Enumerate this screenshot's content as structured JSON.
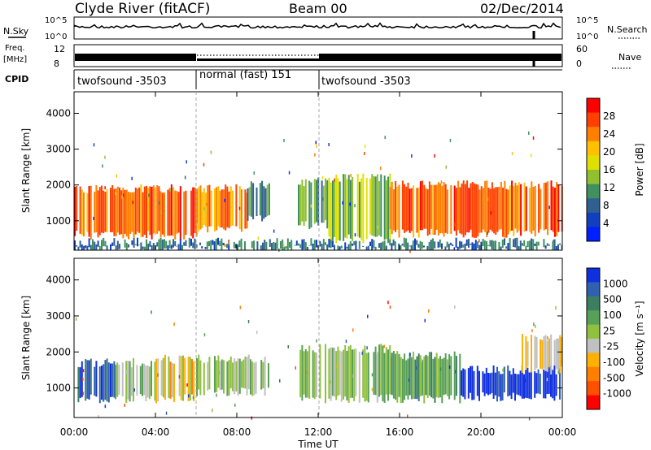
{
  "header": {
    "station": "Clyde River (fitACF)",
    "beam": "Beam 00",
    "date": "02/Dec/2014"
  },
  "panels": {
    "nsky_label": "N.Sky",
    "nsearch_label": "N.Search",
    "freq_label": "Freq.",
    "freq_unit": "[MHz]",
    "nave_label": "Nave",
    "cpid_label": "CPID",
    "count_ticks": [
      "10^5",
      "10^0"
    ],
    "freq_ticks": [
      "12",
      "8"
    ],
    "nave_ticks": [
      "60",
      "0"
    ]
  },
  "cpid_segments": [
    {
      "label": "twofsound -3503",
      "start": 0,
      "end": 6
    },
    {
      "label": "normal (fast) 151",
      "start": 6,
      "end": 12
    },
    {
      "label": "twofsound -3503",
      "start": 12,
      "end": 24
    }
  ],
  "xaxis": {
    "label": "Time UT",
    "ticks": [
      "00:00",
      "04:00",
      "08:00",
      "12:00",
      "16:00",
      "20:00",
      "00:00"
    ],
    "range": [
      0,
      24
    ]
  },
  "power_colorbar": {
    "label": "Power [dB]",
    "ticks": [
      "28",
      "24",
      "20",
      "16",
      "12",
      "8",
      "4"
    ],
    "colors": [
      "#ff0000",
      "#ff4000",
      "#ff8000",
      "#ffc000",
      "#e0e000",
      "#90c030",
      "#409060",
      "#306090",
      "#1040c0",
      "#0020ff"
    ]
  },
  "velocity_colorbar": {
    "label": "Velocity [m s⁻¹]",
    "ticks": [
      "1000",
      "500",
      "100",
      "25",
      "-25",
      "-100",
      "-500",
      "-1000"
    ],
    "colors": [
      "#1030e0",
      "#3060b0",
      "#3a8060",
      "#58a058",
      "#90c040",
      "#c0c0c0",
      "#ffb000",
      "#ff8000",
      "#ff5000",
      "#ff0000"
    ]
  },
  "chart_data": [
    {
      "type": "heatmap",
      "title": "",
      "xlabel": "Time UT",
      "ylabel": "Slant Range [km]",
      "xlim": [
        0,
        24
      ],
      "ylim": [
        180,
        4600
      ],
      "yticks": [
        "1000",
        "2000",
        "3000",
        "4000"
      ],
      "colorbar": "Power [dB]",
      "clim": [
        0,
        30
      ],
      "echo_bands": [
        {
          "t0": 0.0,
          "t1": 6.0,
          "r0": 600,
          "r1": 1900,
          "value": 24
        },
        {
          "t0": 6.0,
          "t1": 8.5,
          "r0": 800,
          "r1": 1900,
          "value": 22
        },
        {
          "t0": 8.5,
          "t1": 9.6,
          "r0": 1100,
          "r1": 2000,
          "value": 10
        },
        {
          "t0": 11.0,
          "t1": 12.5,
          "r0": 900,
          "r1": 2100,
          "value": 12
        },
        {
          "t0": 12.5,
          "t1": 15.5,
          "r0": 500,
          "r1": 2200,
          "value": 14
        },
        {
          "t0": 15.5,
          "t1": 24.0,
          "r0": 650,
          "r1": 2000,
          "value": 24
        },
        {
          "t0": 0.0,
          "t1": 24.0,
          "r0": 200,
          "r1": 400,
          "value": 8
        }
      ]
    },
    {
      "type": "heatmap",
      "title": "",
      "xlabel": "Time UT",
      "ylabel": "Slant Range [km]",
      "xlim": [
        0,
        24
      ],
      "ylim": [
        180,
        4600
      ],
      "yticks": [
        "1000",
        "2000",
        "3000",
        "4000"
      ],
      "colorbar": "Velocity [m s⁻¹]",
      "clim": [
        -1000,
        1000
      ],
      "echo_bands": [
        {
          "t0": 0.0,
          "t1": 2.0,
          "r0": 700,
          "r1": 1700,
          "value": 800
        },
        {
          "t0": 2.0,
          "t1": 4.0,
          "r0": 700,
          "r1": 1700,
          "value": 100
        },
        {
          "t0": 4.0,
          "t1": 6.0,
          "r0": 700,
          "r1": 1800,
          "value": -200
        },
        {
          "t0": 6.0,
          "t1": 9.6,
          "r0": 900,
          "r1": 1800,
          "value": 50
        },
        {
          "t0": 11.0,
          "t1": 15.5,
          "r0": 700,
          "r1": 2100,
          "value": 150
        },
        {
          "t0": 15.5,
          "t1": 19.0,
          "r0": 700,
          "r1": 1900,
          "value": 300
        },
        {
          "t0": 19.0,
          "t1": 24.0,
          "r0": 750,
          "r1": 1500,
          "value": 900
        },
        {
          "t0": 22.0,
          "t1": 24.0,
          "r0": 1500,
          "r1": 2400,
          "value": -150
        }
      ]
    }
  ]
}
